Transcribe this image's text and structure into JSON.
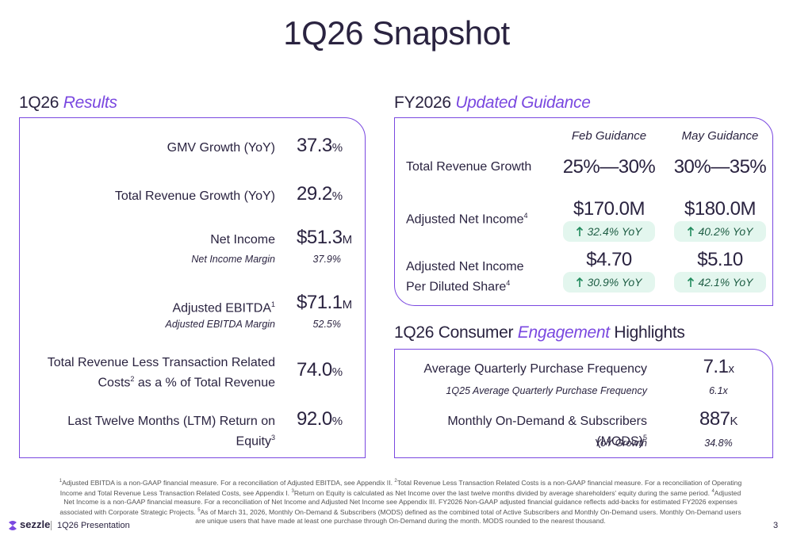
{
  "title": "1Q26 Snapshot",
  "results": {
    "heading": "1Q26",
    "heading_em": "Results",
    "rows": [
      {
        "label": "GMV Growth (YoY)",
        "value": "37.3",
        "unit": "%"
      },
      {
        "label": "Total Revenue Growth (YoY)",
        "value": "29.2",
        "unit": "%"
      },
      {
        "label": "Net Income",
        "value": "$51.3",
        "unit": "M",
        "sub_label": "Net Income Margin",
        "sub_value": "37.9%"
      },
      {
        "label": "Adjusted EBITDA",
        "sup": "1",
        "value": "$71.1",
        "unit": "M",
        "sub_label": "Adjusted EBITDA Margin",
        "sub_value": "52.5%"
      },
      {
        "label": "Total Revenue Less Transaction Related Costs",
        "sup": "2",
        "label_after": " as a % of Total Revenue",
        "value": "74.0",
        "unit": "%"
      },
      {
        "label": "Last Twelve Months (LTM) Return on Equity",
        "sup": "3",
        "value": "92.0",
        "unit": "%"
      }
    ]
  },
  "guidance": {
    "heading": "FY2026",
    "heading_em": "Updated Guidance",
    "columns": [
      "Feb Guidance",
      "May Guidance"
    ],
    "rows": [
      {
        "label": "Total Revenue Growth",
        "cells": [
          {
            "value": "25%—30%"
          },
          {
            "value": "30%—35%"
          }
        ]
      },
      {
        "label": "Adjusted Net Income",
        "sup": "4",
        "cells": [
          {
            "value": "$170.0M",
            "change": "32.4% YoY"
          },
          {
            "value": "$180.0M",
            "change": "40.2% YoY"
          }
        ]
      },
      {
        "label": "Adjusted Net Income Per Diluted Share",
        "sup": "4",
        "cells": [
          {
            "value": "$4.70",
            "change": "30.9% YoY"
          },
          {
            "value": "$5.10",
            "change": "42.1% YoY"
          }
        ]
      }
    ]
  },
  "engagement": {
    "heading": "1Q26 Consumer",
    "heading_em": "Engagement",
    "heading_after": "Highlights",
    "rows": [
      {
        "label": "Average Quarterly Purchase Frequency",
        "value": "7.1",
        "unit": "x",
        "sub_label": "1Q25 Average Quarterly Purchase Frequency",
        "sub_value": "6.1x"
      },
      {
        "label": "Monthly On-Demand & Subscribers (MODS)",
        "sup": "5",
        "value": "887",
        "unit": "K",
        "sub_label": "YoY Growth",
        "sub_value": "34.8%"
      }
    ]
  },
  "footnotes": [
    {
      "num": "1",
      "text": "Adjusted EBITDA is a non-GAAP financial measure. For a reconciliation of Adjusted EBITDA, see Appendix II."
    },
    {
      "num": "2",
      "text": "Total Revenue Less Transaction Related Costs is a non-GAAP financial measure. For a reconciliation of Operating Income and Total Revenue Less Transaction Related Costs, see Appendix I."
    },
    {
      "num": "3",
      "text": "Return on Equity is calculated as Net Income over the last twelve months divided by average shareholders' equity during the same period."
    },
    {
      "num": "4",
      "text": "Adjusted Net Income is a non-GAAP financial measure. For a reconciliation of Net Income and Adjusted Net Income see Appendix III. FY2026 Non-GAAP adjusted financial guidance reflects add-backs for estimated FY2026 expenses associated with Corporate Strategic Projects."
    },
    {
      "num": "5",
      "text": "As of March 31, 2026, Monthly On-Demand & Subscribers (MODS) defined as the combined total of Active Subscribers and Monthly On-Demand users. Monthly On-Demand users are unique users that have made at least one purchase through On-Demand during the month. MODS rounded to the nearest thousand."
    }
  ],
  "footer": {
    "brand": "sezzle",
    "presentation": "1Q26 Presentation",
    "page": "3"
  }
}
